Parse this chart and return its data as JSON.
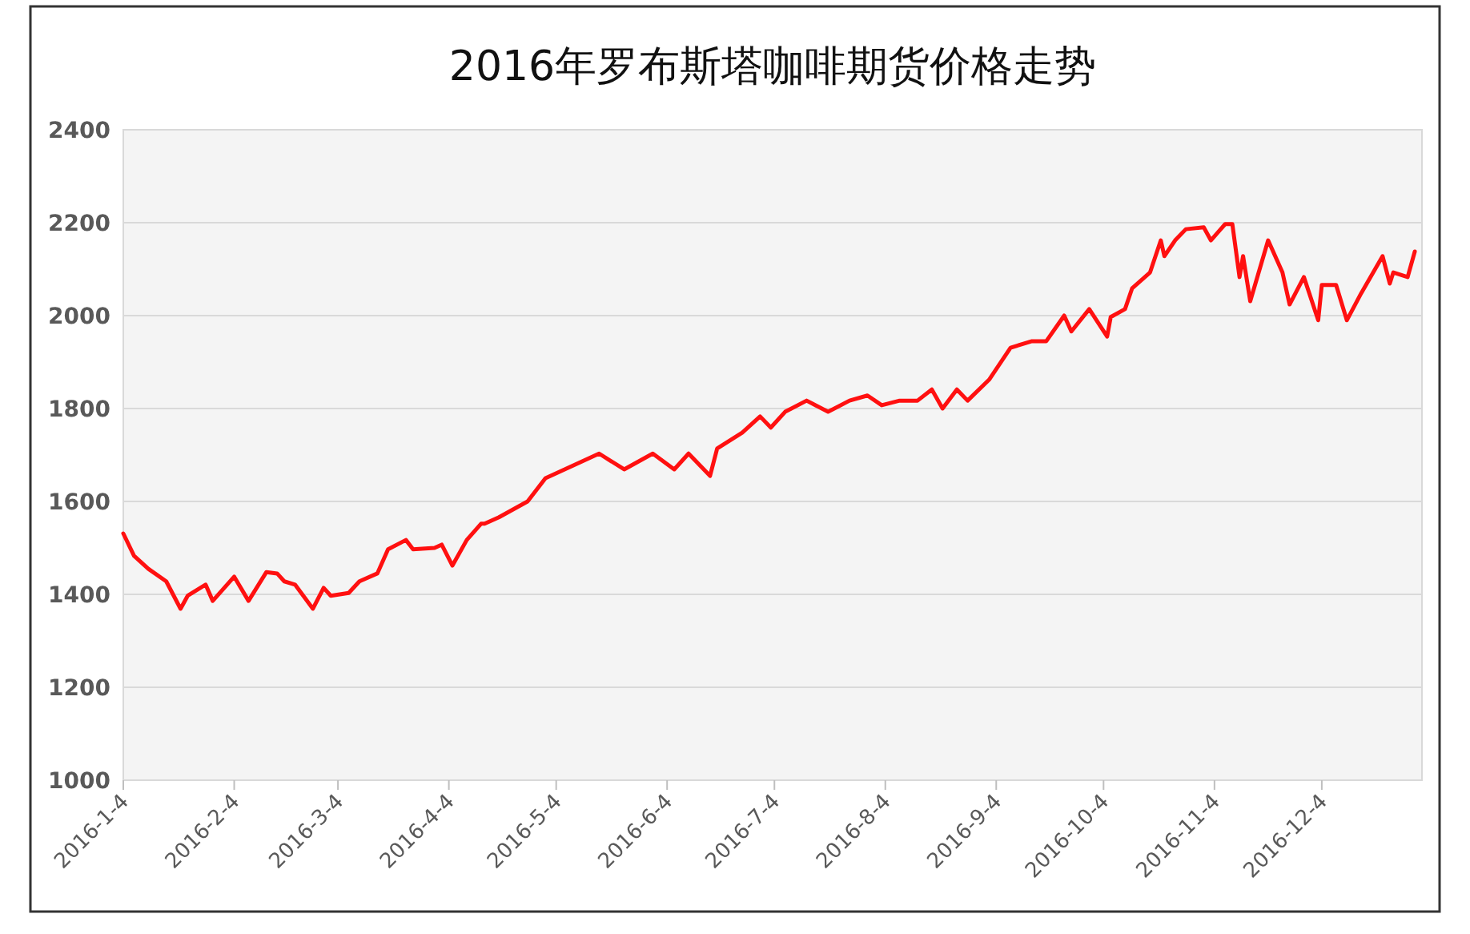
{
  "chart_data": {
    "type": "line",
    "title": "2016年罗布斯塔咖啡期货价格走势",
    "x": [
      "2016-01-04",
      "2016-01-07",
      "2016-01-11",
      "2016-01-16",
      "2016-01-20",
      "2016-01-22",
      "2016-01-27",
      "2016-01-29",
      "2016-02-04",
      "2016-02-08",
      "2016-02-13",
      "2016-02-16",
      "2016-02-18",
      "2016-02-21",
      "2016-02-26",
      "2016-02-29",
      "2016-03-02",
      "2016-03-07",
      "2016-03-10",
      "2016-03-15",
      "2016-03-18",
      "2016-03-23",
      "2016-03-25",
      "2016-03-31",
      "2016-04-02",
      "2016-04-05",
      "2016-04-09",
      "2016-04-13",
      "2016-04-14",
      "2016-04-18",
      "2016-04-26",
      "2016-05-01",
      "2016-05-16",
      "2016-05-23",
      "2016-05-31",
      "2016-06-06",
      "2016-06-10",
      "2016-06-16",
      "2016-06-18",
      "2016-06-25",
      "2016-06-30",
      "2016-07-03",
      "2016-07-07",
      "2016-07-13",
      "2016-07-19",
      "2016-07-25",
      "2016-07-30",
      "2016-08-03",
      "2016-08-08",
      "2016-08-13",
      "2016-08-17",
      "2016-08-20",
      "2016-08-24",
      "2016-08-27",
      "2016-09-02",
      "2016-09-08",
      "2016-09-14",
      "2016-09-18",
      "2016-09-23",
      "2016-09-25",
      "2016-09-30",
      "2016-10-05",
      "2016-10-06",
      "2016-10-10",
      "2016-10-12",
      "2016-10-17",
      "2016-10-20",
      "2016-10-21",
      "2016-10-24",
      "2016-10-27",
      "2016-11-01",
      "2016-11-03",
      "2016-11-07",
      "2016-11-09",
      "2016-11-11",
      "2016-11-12",
      "2016-11-14",
      "2016-11-19",
      "2016-11-23",
      "2016-11-25",
      "2016-11-29",
      "2016-12-03",
      "2016-12-04",
      "2016-12-08",
      "2016-12-11",
      "2016-12-15",
      "2016-12-21",
      "2016-12-23",
      "2016-12-24",
      "2016-12-28",
      "2016-12-30"
    ],
    "series": [
      {
        "color": "#ff1010",
        "values": [
          1531,
          1483,
          1455,
          1428,
          1369,
          1397,
          1421,
          1386,
          1438,
          1386,
          1448,
          1445,
          1428,
          1421,
          1369,
          1414,
          1397,
          1403,
          1428,
          1445,
          1497,
          1517,
          1497,
          1500,
          1507,
          1462,
          1517,
          1552,
          1552,
          1566,
          1600,
          1650,
          1703,
          1669,
          1703,
          1669,
          1703,
          1655,
          1714,
          1748,
          1783,
          1759,
          1793,
          1817,
          1793,
          1817,
          1828,
          1807,
          1817,
          1817,
          1841,
          1800,
          1841,
          1817,
          1862,
          1931,
          1945,
          1945,
          2000,
          1966,
          2014,
          1955,
          1997,
          2014,
          2059,
          2093,
          2162,
          2128,
          2162,
          2186,
          2190,
          2162,
          2197,
          2197,
          2083,
          2128,
          2031,
          2162,
          2093,
          2024,
          2083,
          1990,
          2066,
          2066,
          1990,
          2048,
          2128,
          2069,
          2093,
          2083,
          2138
        ]
      }
    ],
    "xlim": [
      "2016-01-04",
      "2017-01-01"
    ],
    "xticks": [
      {
        "value": "2016-01-04",
        "label": "2016-1-4"
      },
      {
        "value": "2016-02-04",
        "label": "2016-2-4"
      },
      {
        "value": "2016-03-04",
        "label": "2016-3-4"
      },
      {
        "value": "2016-04-04",
        "label": "2016-4-4"
      },
      {
        "value": "2016-05-04",
        "label": "2016-5-4"
      },
      {
        "value": "2016-06-04",
        "label": "2016-6-4"
      },
      {
        "value": "2016-07-04",
        "label": "2016-7-4"
      },
      {
        "value": "2016-08-04",
        "label": "2016-8-4"
      },
      {
        "value": "2016-09-04",
        "label": "2016-9-4"
      },
      {
        "value": "2016-10-04",
        "label": "2016-10-4"
      },
      {
        "value": "2016-11-04",
        "label": "2016-11-4"
      },
      {
        "value": "2016-12-04",
        "label": "2016-12-4"
      }
    ],
    "ylim": [
      1000,
      2400
    ],
    "yticks": [
      1000,
      1200,
      1400,
      1600,
      1800,
      2000,
      2200,
      2400
    ],
    "grid": "y",
    "marker": "none",
    "line_style": "solid"
  }
}
